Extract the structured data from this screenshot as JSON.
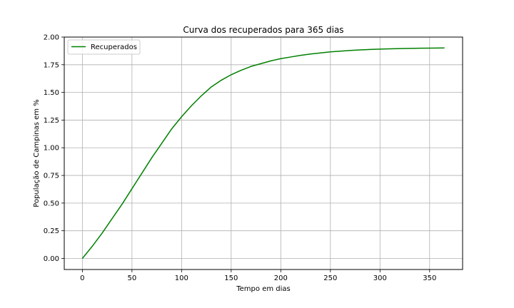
{
  "chart_data": {
    "type": "line",
    "title": "Curva dos recuperados para 365 dias",
    "xlabel": "Tempo em dias",
    "ylabel": "População de Campinas em %",
    "xlim": [
      -18.25,
      383.25
    ],
    "ylim": [
      -0.1,
      2.0
    ],
    "xticks": [
      0,
      50,
      100,
      150,
      200,
      250,
      300,
      350
    ],
    "yticks": [
      0.0,
      0.25,
      0.5,
      0.75,
      1.0,
      1.25,
      1.5,
      1.75,
      2.0
    ],
    "xtick_labels": [
      "0",
      "50",
      "100",
      "150",
      "200",
      "250",
      "300",
      "350"
    ],
    "ytick_labels": [
      "0.00",
      "0.25",
      "0.50",
      "0.75",
      "1.00",
      "1.25",
      "1.50",
      "1.75",
      "2.00"
    ],
    "grid": true,
    "legend_position": "upper-left",
    "series": [
      {
        "name": "Recuperados",
        "color": "#008000",
        "x": [
          0,
          10,
          20,
          30,
          40,
          50,
          60,
          70,
          80,
          90,
          100,
          110,
          120,
          130,
          140,
          150,
          160,
          170,
          180,
          190,
          200,
          210,
          220,
          230,
          240,
          250,
          260,
          270,
          280,
          290,
          300,
          310,
          320,
          330,
          340,
          350,
          365
        ],
        "y": [
          0.0,
          0.11,
          0.23,
          0.36,
          0.49,
          0.63,
          0.77,
          0.91,
          1.04,
          1.17,
          1.28,
          1.38,
          1.47,
          1.55,
          1.61,
          1.66,
          1.7,
          1.735,
          1.76,
          1.785,
          1.805,
          1.82,
          1.835,
          1.847,
          1.857,
          1.866,
          1.873,
          1.879,
          1.884,
          1.888,
          1.891,
          1.894,
          1.896,
          1.898,
          1.899,
          1.9,
          1.902
        ]
      }
    ]
  }
}
